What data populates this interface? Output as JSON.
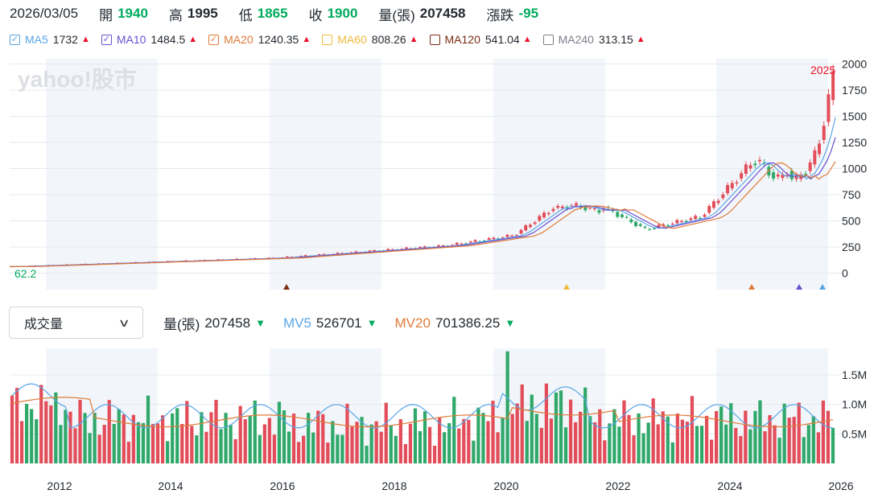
{
  "header": {
    "date": "2026/03/05",
    "fields": [
      {
        "label": "開",
        "value": "1940",
        "color": "dn"
      },
      {
        "label": "高",
        "value": "1995",
        "color": "none"
      },
      {
        "label": "低",
        "value": "1865",
        "color": "dn"
      },
      {
        "label": "收",
        "value": "1900",
        "color": "dn"
      },
      {
        "label": "量(張)",
        "value": "207458",
        "color": "none"
      },
      {
        "label": "漲跌",
        "value": "-95",
        "color": "dn"
      }
    ]
  },
  "ma_legend": [
    {
      "name": "MA5",
      "value": "1732",
      "color": "#5aa5e6",
      "checked": true
    },
    {
      "name": "MA10",
      "value": "1484.5",
      "color": "#6a4fcf",
      "checked": true
    },
    {
      "name": "MA20",
      "value": "1240.35",
      "color": "#e07b39",
      "checked": true
    },
    {
      "name": "MA60",
      "value": "808.26",
      "color": "#f0b93c",
      "checked": false
    },
    {
      "name": "MA120",
      "value": "541.04",
      "color": "#7a2b12",
      "checked": false
    },
    {
      "name": "MA240",
      "value": "313.15",
      "color": "#7b8089",
      "checked": false
    }
  ],
  "watermark": "yahoo!股市",
  "price_chart": {
    "y_ticks": [
      "2000",
      "1750",
      "1500",
      "1250",
      "1000",
      "750",
      "500",
      "250",
      "0"
    ],
    "max_label": "2025",
    "min_label": "62.2"
  },
  "volume": {
    "dropdown_label": "成交量",
    "legend": [
      {
        "name": "量(張)",
        "value": "207458",
        "color": "#232a31",
        "arrow": "▼"
      },
      {
        "name": "MV5",
        "value": "526701",
        "color": "#5aa5e6",
        "arrow": "▼"
      },
      {
        "name": "MV20",
        "value": "701386.25",
        "color": "#e07b39",
        "arrow": "▼"
      }
    ],
    "y_ticks": [
      "1.5M",
      "1.0M",
      "0.5M"
    ]
  },
  "x_axis": [
    "2012",
    "2014",
    "2016",
    "2018",
    "2020",
    "2022",
    "2024",
    "2026"
  ],
  "colors": {
    "up": "#eb0f29",
    "down": "#00ab5e",
    "up_candle": "#e34d59",
    "down_candle": "#2fa86a",
    "band": "#f2f6fa"
  }
}
